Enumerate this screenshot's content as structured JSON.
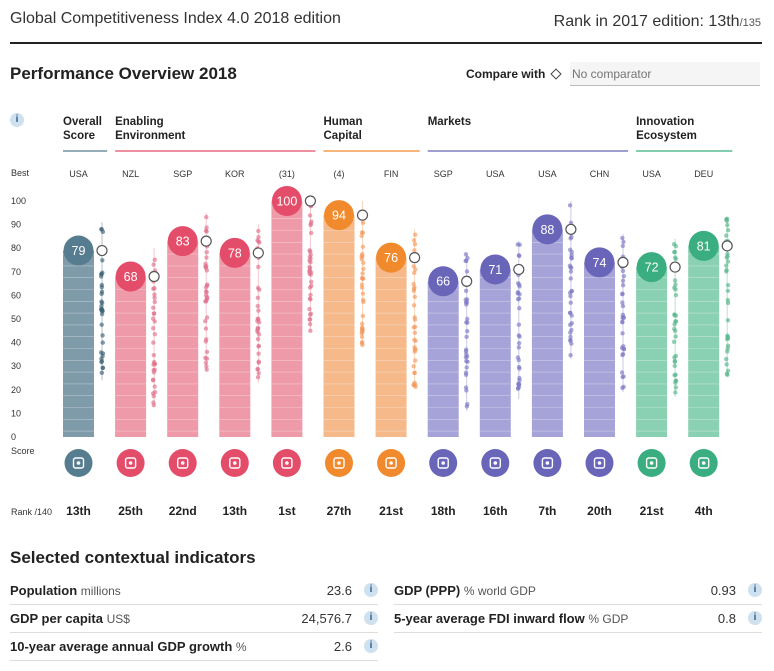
{
  "header": {
    "title": "Global Competitiveness Index 4.0 2018 edition",
    "rank_label": "Rank in 2017 edition: 13th",
    "rank_total": "/135"
  },
  "performance": {
    "title": "Performance Overview 2018",
    "compare_label": "Compare with",
    "compare_placeholder": "No comparator",
    "info": "i"
  },
  "chart_data": {
    "type": "bar",
    "left_labels": {
      "best": "Best",
      "score": "Score",
      "rank": "Rank /140"
    },
    "y_ticks": [
      "100",
      "90",
      "80",
      "70",
      "60",
      "50",
      "40",
      "30",
      "20",
      "10",
      "0"
    ],
    "ylim": [
      0,
      100
    ],
    "groups": [
      {
        "label": [
          "Overall",
          "Score"
        ],
        "color": "#567c8f",
        "start": 0,
        "end": 0
      },
      {
        "label": [
          "Enabling",
          "Environment"
        ],
        "color": "#e44d6a",
        "start": 1,
        "end": 4
      },
      {
        "label": [
          "Human",
          "Capital"
        ],
        "color": "#f08a2c",
        "start": 5,
        "end": 6
      },
      {
        "label": [
          "Markets"
        ],
        "color": "#6965b8",
        "start": 7,
        "end": 10
      },
      {
        "label": [
          "Innovation",
          "Ecosystem"
        ],
        "color": "#3aae80",
        "start": 11,
        "end": 12
      }
    ],
    "pillars": [
      {
        "best": "USA",
        "value": 79,
        "value_label": "79",
        "rank": "13th",
        "icon": "medal-icon",
        "group": 0
      },
      {
        "best": "NZL",
        "value": 68,
        "value_label": "68",
        "rank": "25th",
        "icon": "institutions-icon",
        "group": 1
      },
      {
        "best": "SGP",
        "value": 83,
        "value_label": "83",
        "rank": "22nd",
        "icon": "infrastructure-icon",
        "group": 1
      },
      {
        "best": "KOR",
        "value": 78,
        "value_label": "78",
        "rank": "13th",
        "icon": "ict-chip-icon",
        "group": 1
      },
      {
        "best": "(31)",
        "value": 100,
        "value_label": "100",
        "rank": "1st",
        "icon": "percent-icon",
        "group": 1
      },
      {
        "best": "(4)",
        "value": 94,
        "value_label": "94",
        "rank": "27th",
        "icon": "health-heart-icon",
        "group": 2
      },
      {
        "best": "FIN",
        "value": 76,
        "value_label": "76",
        "rank": "21st",
        "icon": "skills-icon",
        "group": 2
      },
      {
        "best": "SGP",
        "value": 66,
        "value_label": "66",
        "rank": "18th",
        "icon": "product-market-tag-icon",
        "group": 3
      },
      {
        "best": "USA",
        "value": 71,
        "value_label": "71",
        "rank": "16th",
        "icon": "labour-people-icon",
        "group": 3
      },
      {
        "best": "USA",
        "value": 88,
        "value_label": "88",
        "rank": "7th",
        "icon": "financial-card-icon",
        "group": 3
      },
      {
        "best": "CHN",
        "value": 74,
        "value_label": "74",
        "rank": "20th",
        "icon": "market-size-icon",
        "group": 3
      },
      {
        "best": "USA",
        "value": 72,
        "value_label": "72",
        "rank": "21st",
        "icon": "business-dynamism-icon",
        "group": 4
      },
      {
        "best": "DEU",
        "value": 81,
        "value_label": "81",
        "rank": "4th",
        "icon": "innovation-bulb-icon",
        "group": 4
      }
    ],
    "grid": true
  },
  "contextual": {
    "title": "Selected contextual indicators",
    "left": [
      {
        "label": "Population",
        "unit": "millions",
        "value": "23.6"
      },
      {
        "label": "GDP per capita",
        "unit": "US$",
        "value": "24,576.7"
      },
      {
        "label": "10-year average annual GDP growth",
        "unit": "%",
        "value": "2.6"
      }
    ],
    "right": [
      {
        "label": "GDP (PPP)",
        "unit": "% world GDP",
        "value": "0.93"
      },
      {
        "label": "5-year average FDI inward flow",
        "unit": "% GDP",
        "value": "0.8"
      }
    ]
  }
}
